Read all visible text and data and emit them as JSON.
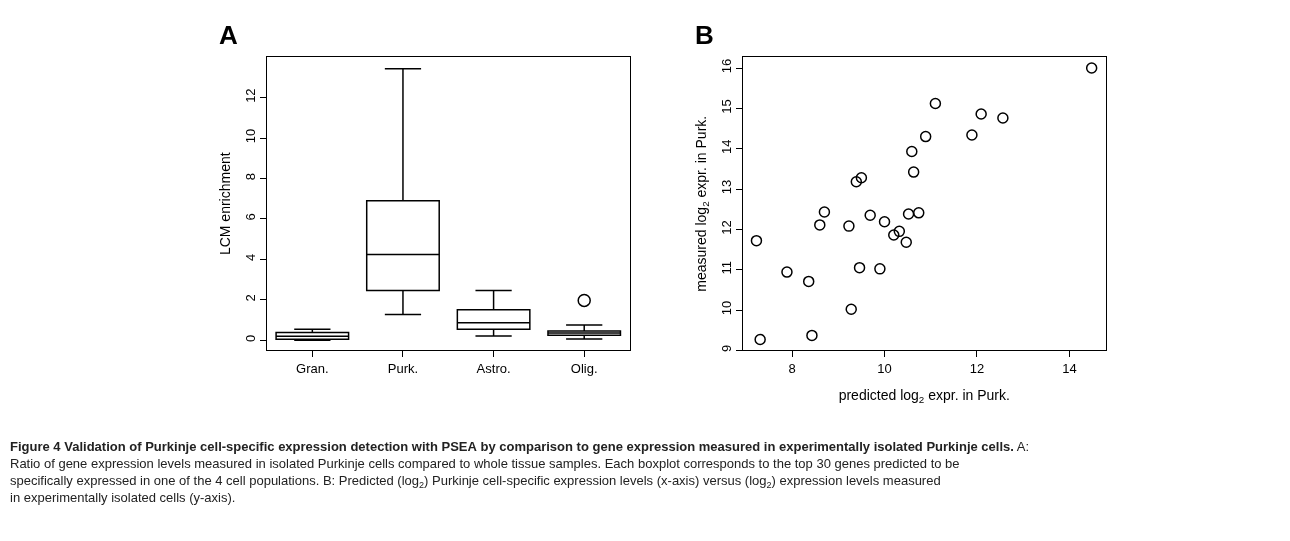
{
  "chart_data": [
    {
      "type": "box",
      "title": "A",
      "ylabel": "LCM enrichment",
      "categories": [
        "Gran.",
        "Purk.",
        "Astro.",
        "Olig."
      ],
      "color": "#000000",
      "boxes": [
        {
          "low": 0.0,
          "q1": 0.05,
          "median": 0.2,
          "q3": 0.38,
          "high": 0.54
        },
        {
          "low": 1.27,
          "q1": 2.46,
          "median": 4.24,
          "q3": 6.9,
          "high": 13.43
        },
        {
          "low": 0.21,
          "q1": 0.54,
          "median": 0.87,
          "q3": 1.51,
          "high": 2.46
        },
        {
          "low": 0.06,
          "q1": 0.25,
          "median": 0.36,
          "q3": 0.46,
          "high": 0.75,
          "outliers": [
            1.97
          ]
        }
      ],
      "ylim": [
        -0.5,
        14
      ],
      "yticks": [
        0,
        2,
        4,
        6,
        8,
        10,
        12
      ],
      "annotations": [
        "Figure 4 Validation of Purkinje cell-specific expression detection with PSEA by comparison to gene expression measured in experimentally isolated Purkinje cells.",
        "A: Ratio of gene expression levels measured in isolated Purkinje cells compared to whole tissue samples. Each boxplot corresponds to the top 30 genes predicted to be specifically expressed in one of the 4 cell populations. B: Predicted (log$_{2}$) Purkinje cell-specific expression levels (x-axis) versus (log$_{2}$) expression levels measured in experimentally isolated cells (y-axis)."
      ]
    },
    {
      "type": "scatter",
      "title": "B",
      "xlabel": "predicted log$_{2}$ expr. in Purk.",
      "ylabel": "measured log$_{2}$ expr. in Purk.",
      "marker": "circle",
      "color": "#000000",
      "x": [
        7.23,
        7.31,
        7.89,
        8.36,
        8.43,
        8.6,
        8.7,
        9.23,
        9.28,
        9.39,
        9.5,
        9.46,
        9.69,
        9.9,
        10.0,
        10.2,
        10.32,
        10.47,
        10.52,
        10.74,
        10.63,
        10.59,
        10.89,
        11.1,
        11.89,
        12.09,
        12.56,
        14.48
      ],
      "values": [
        11.72,
        9.27,
        10.94,
        10.71,
        9.37,
        12.11,
        12.43,
        12.08,
        10.02,
        13.18,
        13.28,
        11.05,
        12.35,
        11.02,
        12.19,
        11.86,
        11.95,
        11.68,
        12.38,
        12.41,
        13.42,
        13.93,
        14.3,
        15.12,
        14.34,
        14.86,
        14.76,
        16.0
      ],
      "xlim": [
        6.94,
        14.78
      ],
      "xticks": [
        8,
        10,
        12,
        14
      ],
      "ylim": [
        9.0,
        16.27
      ],
      "yticks": [
        9,
        10,
        11,
        12,
        13,
        14,
        15,
        16
      ]
    }
  ]
}
